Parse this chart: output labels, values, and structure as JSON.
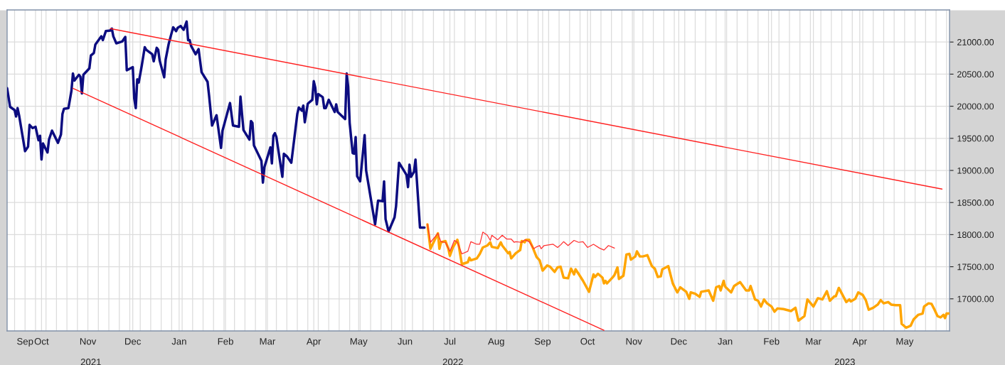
{
  "chart_data": {
    "type": "line",
    "xlim": [
      "2021-09-08",
      "2023-05-31"
    ],
    "ylim": [
      16500,
      21500
    ],
    "yticks": [
      {
        "value": 17000,
        "label": "17000.00"
      },
      {
        "value": 17500,
        "label": "17500.00"
      },
      {
        "value": 18000,
        "label": "18000.00"
      },
      {
        "value": 18500,
        "label": "18500.00"
      },
      {
        "value": 19000,
        "label": "19000.00"
      },
      {
        "value": 19500,
        "label": "19500.00"
      },
      {
        "value": 20000,
        "label": "20000.00"
      },
      {
        "value": 20500,
        "label": "20500.00"
      },
      {
        "value": 21000,
        "label": "21000.00"
      }
    ],
    "xticks": [
      {
        "value": "2021-09-13",
        "label": null
      },
      {
        "value": "2021-09-20",
        "label": "Sep"
      },
      {
        "value": "2021-09-27",
        "label": null
      },
      {
        "value": "2021-10-01",
        "label": "Oct"
      },
      {
        "value": "2021-10-04",
        "label": null
      },
      {
        "value": "2021-10-11",
        "label": null
      },
      {
        "value": "2021-10-18",
        "label": null
      },
      {
        "value": "2021-10-25",
        "label": null
      },
      {
        "value": "2021-11-01",
        "label": "Nov"
      },
      {
        "value": "2021-11-08",
        "label": null
      },
      {
        "value": "2021-11-15",
        "label": null
      },
      {
        "value": "2021-11-22",
        "label": null
      },
      {
        "value": "2021-11-29",
        "label": null
      },
      {
        "value": "2021-12-01",
        "label": "Dec"
      },
      {
        "value": "2021-12-06",
        "label": null
      },
      {
        "value": "2021-12-13",
        "label": null
      },
      {
        "value": "2021-12-20",
        "label": null
      },
      {
        "value": "2021-12-27",
        "label": null
      },
      {
        "value": "2022-01-01",
        "label": "Jan"
      },
      {
        "value": "2022-01-03",
        "label": null
      },
      {
        "value": "2022-01-10",
        "label": null
      },
      {
        "value": "2022-01-17",
        "label": null
      },
      {
        "value": "2022-01-24",
        "label": null
      },
      {
        "value": "2022-01-31",
        "label": null
      },
      {
        "value": "2022-02-01",
        "label": "Feb"
      },
      {
        "value": "2022-02-07",
        "label": null
      },
      {
        "value": "2022-02-14",
        "label": null
      },
      {
        "value": "2022-02-21",
        "label": null
      },
      {
        "value": "2022-02-28",
        "label": null
      },
      {
        "value": "2022-03-01",
        "label": "Mar"
      },
      {
        "value": "2022-03-07",
        "label": null
      },
      {
        "value": "2022-03-14",
        "label": null
      },
      {
        "value": "2022-03-21",
        "label": null
      },
      {
        "value": "2022-03-28",
        "label": null
      },
      {
        "value": "2022-04-01",
        "label": "Apr"
      },
      {
        "value": "2022-04-04",
        "label": null
      },
      {
        "value": "2022-04-11",
        "label": null
      },
      {
        "value": "2022-04-18",
        "label": null
      },
      {
        "value": "2022-04-25",
        "label": null
      },
      {
        "value": "2022-05-01",
        "label": "May"
      },
      {
        "value": "2022-05-02",
        "label": null
      },
      {
        "value": "2022-05-09",
        "label": null
      },
      {
        "value": "2022-05-16",
        "label": null
      },
      {
        "value": "2022-05-23",
        "label": null
      },
      {
        "value": "2022-05-30",
        "label": null
      },
      {
        "value": "2022-06-01",
        "label": "Jun"
      },
      {
        "value": "2022-06-06",
        "label": null
      },
      {
        "value": "2022-06-13",
        "label": null
      },
      {
        "value": "2022-06-20",
        "label": null
      },
      {
        "value": "2022-06-27",
        "label": null
      },
      {
        "value": "2022-07-01",
        "label": "Jul"
      },
      {
        "value": "2022-07-04",
        "label": null
      },
      {
        "value": "2022-07-11",
        "label": null
      },
      {
        "value": "2022-07-18",
        "label": null
      },
      {
        "value": "2022-07-25",
        "label": null
      },
      {
        "value": "2022-08-01",
        "label": "Aug"
      },
      {
        "value": "2022-08-08",
        "label": null
      },
      {
        "value": "2022-08-15",
        "label": null
      },
      {
        "value": "2022-08-22",
        "label": null
      },
      {
        "value": "2022-08-29",
        "label": null
      },
      {
        "value": "2022-09-01",
        "label": "Sep"
      },
      {
        "value": "2022-09-05",
        "label": null
      },
      {
        "value": "2022-09-12",
        "label": null
      },
      {
        "value": "2022-09-19",
        "label": null
      },
      {
        "value": "2022-09-26",
        "label": null
      },
      {
        "value": "2022-10-01",
        "label": "Oct"
      },
      {
        "value": "2022-10-03",
        "label": null
      },
      {
        "value": "2022-10-10",
        "label": null
      },
      {
        "value": "2022-10-17",
        "label": null
      },
      {
        "value": "2022-10-24",
        "label": null
      },
      {
        "value": "2022-10-31",
        "label": null
      },
      {
        "value": "2022-11-01",
        "label": "Nov"
      },
      {
        "value": "2022-11-07",
        "label": null
      },
      {
        "value": "2022-11-14",
        "label": null
      },
      {
        "value": "2022-11-21",
        "label": null
      },
      {
        "value": "2022-11-28",
        "label": null
      },
      {
        "value": "2022-12-01",
        "label": "Dec"
      },
      {
        "value": "2022-12-05",
        "label": null
      },
      {
        "value": "2022-12-12",
        "label": null
      },
      {
        "value": "2022-12-19",
        "label": null
      },
      {
        "value": "2022-12-26",
        "label": null
      },
      {
        "value": "2023-01-01",
        "label": "Jan"
      },
      {
        "value": "2023-01-02",
        "label": null
      },
      {
        "value": "2023-01-09",
        "label": null
      },
      {
        "value": "2023-01-16",
        "label": null
      },
      {
        "value": "2023-01-23",
        "label": null
      },
      {
        "value": "2023-01-30",
        "label": null
      },
      {
        "value": "2023-02-01",
        "label": "Feb"
      },
      {
        "value": "2023-02-06",
        "label": null
      },
      {
        "value": "2023-02-13",
        "label": null
      },
      {
        "value": "2023-02-20",
        "label": null
      },
      {
        "value": "2023-02-27",
        "label": null
      },
      {
        "value": "2023-03-01",
        "label": "Mar"
      },
      {
        "value": "2023-03-06",
        "label": null
      },
      {
        "value": "2023-03-13",
        "label": null
      },
      {
        "value": "2023-03-20",
        "label": null
      },
      {
        "value": "2023-03-27",
        "label": null
      },
      {
        "value": "2023-04-01",
        "label": "Apr"
      },
      {
        "value": "2023-04-03",
        "label": null
      },
      {
        "value": "2023-04-10",
        "label": null
      },
      {
        "value": "2023-04-17",
        "label": null
      },
      {
        "value": "2023-04-24",
        "label": null
      },
      {
        "value": "2023-05-01",
        "label": "May"
      },
      {
        "value": "2023-05-08",
        "label": null
      },
      {
        "value": "2023-05-15",
        "label": null
      },
      {
        "value": "2023-05-22",
        "label": null
      },
      {
        "value": "2023-05-29",
        "label": null
      }
    ],
    "x2lim": [
      "2021-09-08",
      "2023-05-31"
    ],
    "x2ticks": [
      {
        "value": "2021-11-03",
        "label": "2021"
      },
      {
        "value": "2022-07-03",
        "label": "2022"
      },
      {
        "value": "2023-03-22",
        "label": "2023"
      }
    ],
    "grid": true,
    "legend": false,
    "series": [
      {
        "type": "line",
        "color": "#0c0c80",
        "x": [
          "2021-09-08",
          "2021-09-10",
          "2021-09-13",
          "2021-09-14",
          "2021-09-15",
          "2021-09-16",
          "2021-09-20",
          "2021-09-22",
          "2021-09-23",
          "2021-09-25",
          "2021-09-27",
          "2021-09-29",
          "2021-09-30",
          "2021-10-01",
          "2021-10-02",
          "2021-10-05",
          "2021-10-06",
          "2021-10-08",
          "2021-10-12",
          "2021-10-14",
          "2021-10-15",
          "2021-10-16",
          "2021-10-19",
          "2021-10-21",
          "2021-10-22",
          "2021-10-23",
          "2021-10-26",
          "2021-10-27",
          "2021-10-28",
          "2021-10-29",
          "2021-11-02",
          "2021-11-03",
          "2021-11-05",
          "2021-11-06",
          "2021-11-10",
          "2021-11-11",
          "2021-11-13",
          "2021-11-16",
          "2021-11-17",
          "2021-11-18",
          "2021-11-20",
          "2021-11-24",
          "2021-11-26",
          "2021-11-27",
          "2021-12-01",
          "2021-12-02",
          "2021-12-03",
          "2021-12-04",
          "2021-12-05",
          "2021-12-07",
          "2021-12-09",
          "2021-12-10",
          "2021-12-14",
          "2021-12-15",
          "2021-12-17",
          "2021-12-18",
          "2021-12-19",
          "2021-12-22",
          "2021-12-23",
          "2021-12-25",
          "2021-12-28",
          "2021-12-30",
          "2021-12-31",
          "2022-01-02",
          "2022-01-04",
          "2022-01-06",
          "2022-01-07",
          "2022-01-08",
          "2022-01-09",
          "2022-01-12",
          "2022-01-14",
          "2022-01-16",
          "2022-01-20",
          "2022-01-21",
          "2022-01-23",
          "2022-01-26",
          "2022-01-29",
          "2022-01-30",
          "2022-02-04",
          "2022-02-06",
          "2022-02-10",
          "2022-02-11",
          "2022-02-13",
          "2022-02-17",
          "2022-02-18",
          "2022-02-19",
          "2022-02-20",
          "2022-02-25",
          "2022-02-26",
          "2022-02-27",
          "2022-03-03",
          "2022-03-04",
          "2022-03-05",
          "2022-03-06",
          "2022-03-07",
          "2022-03-11",
          "2022-03-12",
          "2022-03-14",
          "2022-03-17",
          "2022-03-21",
          "2022-03-22",
          "2022-03-24",
          "2022-03-25",
          "2022-03-26",
          "2022-03-28",
          "2022-03-31",
          "2022-04-01",
          "2022-04-02",
          "2022-04-03",
          "2022-04-04",
          "2022-04-07",
          "2022-04-08",
          "2022-04-09",
          "2022-04-11",
          "2022-04-15",
          "2022-04-16",
          "2022-04-17",
          "2022-04-22",
          "2022-04-23",
          "2022-04-24",
          "2022-04-25",
          "2022-04-27",
          "2022-04-28",
          "2022-04-29",
          "2022-04-30",
          "2022-05-02",
          "2022-05-05",
          "2022-05-06",
          "2022-05-12",
          "2022-05-14",
          "2022-05-17",
          "2022-05-18",
          "2022-05-19",
          "2022-05-21",
          "2022-05-25",
          "2022-05-26",
          "2022-05-28",
          "2022-06-02",
          "2022-06-03",
          "2022-06-04",
          "2022-06-05",
          "2022-06-07",
          "2022-06-08",
          "2022-06-11",
          "2022-06-14"
        ],
        "values": [
          20280,
          19990,
          19940,
          19840,
          19970,
          19860,
          19300,
          19370,
          19710,
          19660,
          19680,
          19470,
          19540,
          19170,
          19420,
          19280,
          19480,
          19620,
          19430,
          19560,
          19880,
          19960,
          19970,
          20240,
          20510,
          20400,
          20490,
          20460,
          20200,
          20490,
          20590,
          20790,
          20830,
          20960,
          21090,
          21030,
          21170,
          21180,
          21210,
          21090,
          20980,
          21010,
          21080,
          20560,
          20610,
          20120,
          19970,
          20420,
          20370,
          20630,
          20920,
          20880,
          20810,
          20700,
          20910,
          20880,
          20710,
          20450,
          20730,
          20970,
          21230,
          21170,
          21220,
          21250,
          21190,
          21320,
          21030,
          21030,
          20940,
          20810,
          20890,
          20530,
          20380,
          20170,
          19700,
          19860,
          19350,
          19620,
          20050,
          19700,
          19680,
          20150,
          19630,
          19480,
          19770,
          19740,
          19390,
          19150,
          18810,
          19050,
          19360,
          19110,
          19540,
          19580,
          19520,
          18900,
          19260,
          19220,
          19120,
          19880,
          19980,
          19930,
          20010,
          19750,
          20040,
          20100,
          20390,
          20290,
          20030,
          20190,
          20140,
          19970,
          19970,
          20100,
          19910,
          20030,
          19910,
          19800,
          20510,
          20300,
          19740,
          19270,
          19260,
          19520,
          18910,
          18830,
          19550,
          19000,
          18160,
          18530,
          18520,
          18830,
          18240,
          18050,
          18270,
          18440,
          19120,
          18930,
          18740,
          19090,
          18900,
          18980,
          19170,
          18110,
          18110
        ]
      },
      {
        "type": "line",
        "color": "#ffa500",
        "x": [
          "2022-06-16",
          "2022-06-18",
          "2022-06-23",
          "2022-06-24",
          "2022-06-25",
          "2022-06-28",
          "2022-06-30",
          "2022-07-01",
          "2022-07-03",
          "2022-07-06",
          "2022-07-07",
          "2022-07-09",
          "2022-07-13",
          "2022-07-14",
          "2022-07-15",
          "2022-07-19",
          "2022-07-21",
          "2022-07-23",
          "2022-07-26",
          "2022-07-28",
          "2022-07-29",
          "2022-08-02",
          "2022-08-04",
          "2022-08-05",
          "2022-08-06",
          "2022-08-09",
          "2022-08-10",
          "2022-08-11",
          "2022-08-14",
          "2022-08-17",
          "2022-08-18",
          "2022-08-20",
          "2022-08-21",
          "2022-08-23",
          "2022-08-25",
          "2022-08-28",
          "2022-08-30",
          "2022-09-01",
          "2022-09-04",
          "2022-09-06",
          "2022-09-09",
          "2022-09-11",
          "2022-09-13",
          "2022-09-15",
          "2022-09-18",
          "2022-09-20",
          "2022-09-22",
          "2022-09-23",
          "2022-09-25",
          "2022-09-28",
          "2022-10-02",
          "2022-10-05",
          "2022-10-06",
          "2022-10-08",
          "2022-10-11",
          "2022-10-12",
          "2022-10-13",
          "2022-10-14",
          "2022-10-18",
          "2022-10-19",
          "2022-10-21",
          "2022-10-22",
          "2022-10-25",
          "2022-10-27",
          "2022-10-29",
          "2022-10-30",
          "2022-11-02",
          "2022-11-03",
          "2022-11-05",
          "2022-11-07",
          "2022-11-10",
          "2022-11-13",
          "2022-11-15",
          "2022-11-17",
          "2022-11-19",
          "2022-11-20",
          "2022-11-24",
          "2022-11-27",
          "2022-11-30",
          "2022-12-02",
          "2022-12-06",
          "2022-12-08",
          "2022-12-09",
          "2022-12-12",
          "2022-12-15",
          "2022-12-16",
          "2022-12-21",
          "2022-12-24",
          "2022-12-26",
          "2022-12-28",
          "2022-12-29",
          "2022-12-31",
          "2023-01-01",
          "2023-01-05",
          "2023-01-07",
          "2023-01-11",
          "2023-01-15",
          "2023-01-17",
          "2023-01-18",
          "2023-01-21",
          "2023-01-23",
          "2023-01-25",
          "2023-01-27",
          "2023-01-29",
          "2023-02-01",
          "2023-02-03",
          "2023-02-05",
          "2023-02-09",
          "2023-02-14",
          "2023-02-17",
          "2023-02-19",
          "2023-02-23",
          "2023-02-25",
          "2023-03-01",
          "2023-03-04",
          "2023-03-07",
          "2023-03-10",
          "2023-03-12",
          "2023-03-15",
          "2023-03-16",
          "2023-03-18",
          "2023-03-23",
          "2023-03-25",
          "2023-03-26",
          "2023-03-29",
          "2023-03-31",
          "2023-04-03",
          "2023-04-05",
          "2023-04-07",
          "2023-04-10",
          "2023-04-13",
          "2023-04-15",
          "2023-04-17",
          "2023-04-20",
          "2023-04-22",
          "2023-04-25",
          "2023-04-28",
          "2023-04-29",
          "2023-05-02",
          "2023-05-04",
          "2023-05-05",
          "2023-05-07",
          "2023-05-10",
          "2023-05-13",
          "2023-05-14",
          "2023-05-17",
          "2023-05-19",
          "2023-05-21",
          "2023-05-23",
          "2023-05-25",
          "2023-05-27",
          "2023-05-28",
          "2023-05-29",
          "2023-05-31"
        ],
        "values": [
          18160,
          17780,
          18020,
          17780,
          17880,
          17900,
          17780,
          17670,
          17800,
          17920,
          17820,
          17540,
          17570,
          17640,
          17600,
          17630,
          17700,
          17800,
          17830,
          17880,
          17810,
          17790,
          17880,
          17830,
          17800,
          17710,
          17730,
          17630,
          17710,
          17760,
          17900,
          17880,
          17920,
          17920,
          17820,
          17650,
          17600,
          17440,
          17520,
          17500,
          17420,
          17490,
          17500,
          17330,
          17320,
          17470,
          17380,
          17460,
          17390,
          17280,
          17110,
          17380,
          17340,
          17390,
          17330,
          17240,
          17280,
          17240,
          17340,
          17370,
          17490,
          17310,
          17360,
          17690,
          17700,
          17610,
          17660,
          17740,
          17660,
          17660,
          17680,
          17510,
          17470,
          17340,
          17350,
          17460,
          17510,
          17240,
          17100,
          17180,
          17110,
          17000,
          17100,
          17080,
          17030,
          17110,
          17130,
          16970,
          17180,
          17200,
          17130,
          17280,
          17190,
          17100,
          17200,
          17260,
          17130,
          17130,
          17200,
          16990,
          16970,
          16880,
          16990,
          16930,
          16880,
          16800,
          16850,
          16840,
          16810,
          16860,
          16660,
          16730,
          16990,
          16880,
          17010,
          16990,
          17120,
          16970,
          17040,
          17040,
          17170,
          16950,
          16990,
          16960,
          17000,
          17100,
          17060,
          16980,
          16830,
          16860,
          16910,
          16980,
          16930,
          16950,
          16910,
          16900,
          16900,
          16610,
          16550,
          16570,
          16580,
          16680,
          16750,
          16770,
          16880,
          16930,
          16920,
          16830,
          16730,
          16710,
          16750,
          16700,
          16770,
          16770
        ]
      },
      {
        "type": "line",
        "color": "#ff3030",
        "x": [
          "2022-06-16",
          "2022-06-18",
          "2022-06-23",
          "2022-06-25",
          "2022-06-28",
          "2022-07-01",
          "2022-07-04",
          "2022-07-06",
          "2022-07-09",
          "2022-07-13",
          "2022-07-15",
          "2022-07-19",
          "2022-07-21",
          "2022-07-23",
          "2022-07-26",
          "2022-07-28",
          "2022-07-29",
          "2022-08-02",
          "2022-08-05",
          "2022-08-08",
          "2022-08-11",
          "2022-08-13",
          "2022-08-14",
          "2022-08-18",
          "2022-08-20",
          "2022-08-23",
          "2022-08-26",
          "2022-08-28",
          "2022-08-30",
          "2022-08-31",
          "2022-09-02",
          "2022-09-05",
          "2022-09-08",
          "2022-09-11",
          "2022-09-13",
          "2022-09-15",
          "2022-09-18",
          "2022-09-22",
          "2022-09-25",
          "2022-09-28",
          "2022-10-01",
          "2022-10-05",
          "2022-10-09",
          "2022-10-12",
          "2022-10-15",
          "2022-10-19"
        ],
        "values": [
          18160,
          17880,
          18020,
          17890,
          17880,
          17740,
          17910,
          17880,
          17700,
          17740,
          17890,
          17850,
          17850,
          18040,
          17990,
          17910,
          17990,
          17920,
          17990,
          17930,
          17930,
          17880,
          17890,
          17880,
          17920,
          17890,
          17780,
          17810,
          17830,
          17780,
          17830,
          17840,
          17850,
          17800,
          17840,
          17890,
          17830,
          17910,
          17880,
          17890,
          17800,
          17850,
          17790,
          17760,
          17830,
          17790
        ]
      },
      {
        "type": "line",
        "color": "#ff2020",
        "x": [
          "2021-11-16",
          "2023-05-26"
        ],
        "values": [
          21210,
          18710
        ]
      },
      {
        "type": "line",
        "color": "#ff2020",
        "x": [
          "2021-10-22",
          "2022-10-12"
        ],
        "values": [
          20280,
          16510
        ]
      }
    ]
  }
}
